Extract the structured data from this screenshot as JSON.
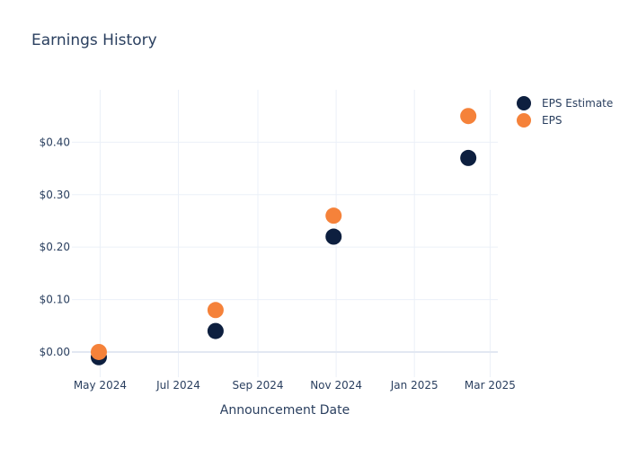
{
  "chart_data": {
    "type": "scatter",
    "title": "Earnings History",
    "xlabel": "Announcement Date",
    "ylabel": "",
    "x_type": "date",
    "xlim": [
      "2024-04-09",
      "2025-03-07"
    ],
    "ylim": [
      -0.048,
      0.5
    ],
    "x_ticks": [
      {
        "date": "2024-05-01",
        "label": "May 2024"
      },
      {
        "date": "2024-07-01",
        "label": "Jul 2024"
      },
      {
        "date": "2024-09-01",
        "label": "Sep 2024"
      },
      {
        "date": "2024-11-01",
        "label": "Nov 2024"
      },
      {
        "date": "2025-01-01",
        "label": "Jan 2025"
      },
      {
        "date": "2025-03-01",
        "label": "Mar 2025"
      }
    ],
    "y_ticks": [
      {
        "value": 0.0,
        "label": "$0.00"
      },
      {
        "value": 0.1,
        "label": "$0.10"
      },
      {
        "value": 0.2,
        "label": "$0.20"
      },
      {
        "value": 0.3,
        "label": "$0.30"
      },
      {
        "value": 0.4,
        "label": "$0.40"
      }
    ],
    "grid": true,
    "legend_position": "top-right",
    "series": [
      {
        "name": "EPS Estimate",
        "color": "#0d1f3f",
        "points": [
          {
            "x": "2024-04-30",
            "y": -0.01
          },
          {
            "x": "2024-07-30",
            "y": 0.04
          },
          {
            "x": "2024-10-30",
            "y": 0.22
          },
          {
            "x": "2025-02-12",
            "y": 0.37
          }
        ]
      },
      {
        "name": "EPS",
        "color": "#f5823a",
        "points": [
          {
            "x": "2024-04-30",
            "y": 0.0
          },
          {
            "x": "2024-07-30",
            "y": 0.08
          },
          {
            "x": "2024-10-30",
            "y": 0.26
          },
          {
            "x": "2025-02-12",
            "y": 0.45
          }
        ]
      }
    ]
  }
}
